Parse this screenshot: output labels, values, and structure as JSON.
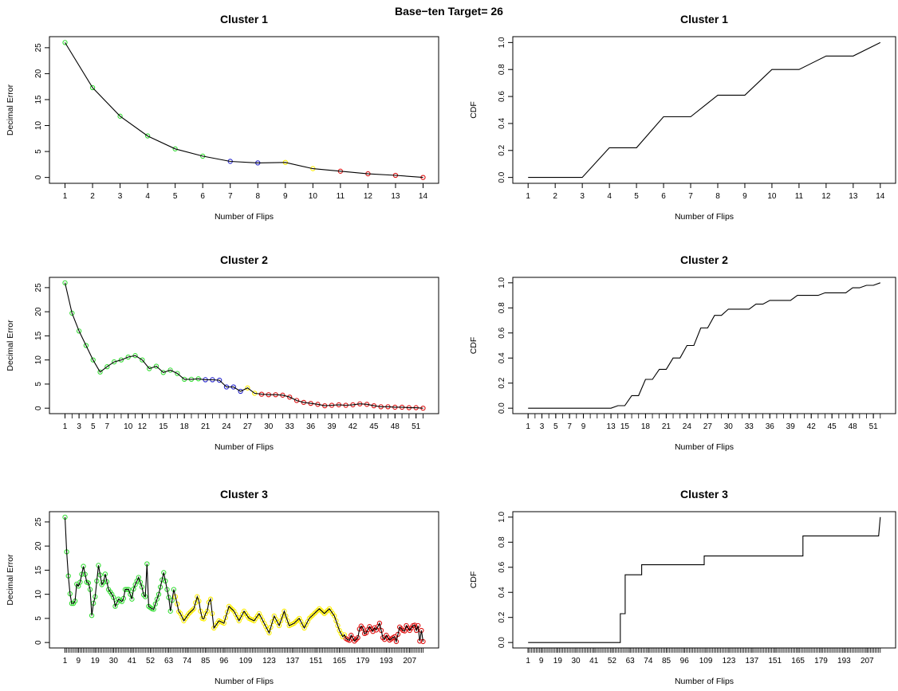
{
  "title": "Base−ten Target= 26",
  "colors": {
    "green": "#33dd33",
    "blue": "#2222cc",
    "yellow": "#ffee00",
    "red": "#dd1111",
    "line": "#000000"
  },
  "chart_data": [
    {
      "type": "line",
      "title": "Cluster 1",
      "xlabel": "Number of Flips",
      "ylabel": "Decimal Error",
      "xlim": [
        1,
        14
      ],
      "ylim": [
        0,
        26
      ],
      "xticks": [
        1,
        2,
        3,
        4,
        5,
        6,
        7,
        8,
        9,
        10,
        11,
        12,
        13,
        14
      ],
      "yticks": [
        0,
        5,
        10,
        15,
        20,
        25
      ],
      "values": [
        26,
        17.3,
        11.8,
        8,
        5.5,
        4.1,
        3.1,
        2.8,
        2.9,
        1.7,
        1.2,
        0.7,
        0.4,
        0
      ],
      "colors": [
        "green",
        "green",
        "green",
        "green",
        "green",
        "green",
        "blue",
        "blue",
        "yellow",
        "yellow",
        "red",
        "red",
        "red",
        "red"
      ],
      "markers": true,
      "marker_every": 1
    },
    {
      "type": "line",
      "title": "Cluster 1",
      "xlabel": "Number of Flips",
      "ylabel": "CDF",
      "xlim": [
        1,
        14
      ],
      "ylim": [
        0,
        1
      ],
      "xticks": [
        1,
        2,
        3,
        4,
        5,
        6,
        7,
        8,
        9,
        10,
        11,
        12,
        13,
        14
      ],
      "yticks": [
        0,
        0.2,
        0.4,
        0.6,
        0.8,
        1.0
      ],
      "values": [
        0,
        0,
        0,
        0.22,
        0.22,
        0.45,
        0.45,
        0.61,
        0.61,
        0.8,
        0.8,
        0.9,
        0.9,
        1.0
      ]
    },
    {
      "type": "line",
      "title": "Cluster 2",
      "xlabel": "Number of Flips",
      "ylabel": "Decimal Error",
      "xlim": [
        1,
        52
      ],
      "ylim": [
        0,
        26
      ],
      "xticks": [
        1,
        3,
        5,
        7,
        10,
        12,
        15,
        18,
        21,
        24,
        27,
        30,
        33,
        36,
        39,
        42,
        45,
        48,
        51
      ],
      "yticks": [
        0,
        5,
        10,
        15,
        20,
        25
      ],
      "values": [
        26,
        19.7,
        16,
        13,
        10,
        7.5,
        8.6,
        9.6,
        10,
        10.6,
        10.9,
        10,
        8.2,
        8.7,
        7.4,
        7.9,
        7.2,
        6,
        6,
        6.1,
        5.9,
        5.9,
        5.8,
        4.4,
        4.4,
        3.5,
        4.2,
        3.1,
        2.9,
        2.8,
        2.8,
        2.7,
        2.3,
        1.6,
        1.2,
        1.0,
        0.8,
        0.5,
        0.6,
        0.7,
        0.6,
        0.7,
        0.9,
        0.8,
        0.5,
        0.3,
        0.3,
        0.2,
        0.2,
        0.1,
        0.1,
        0
      ],
      "colors": [
        "green",
        "green",
        "green",
        "green",
        "green",
        "green",
        "green",
        "green",
        "green",
        "green",
        "green",
        "green",
        "green",
        "green",
        "green",
        "green",
        "green",
        "green",
        "green",
        "green",
        "blue",
        "blue",
        "blue",
        "blue",
        "blue",
        "blue",
        "yellow",
        "yellow",
        "red",
        "red",
        "red",
        "red",
        "red",
        "red",
        "red",
        "red",
        "red",
        "red",
        "red",
        "red",
        "red",
        "red",
        "red",
        "red",
        "red",
        "red",
        "red",
        "red",
        "red",
        "red",
        "red",
        "red"
      ],
      "markers": true,
      "marker_every": 1
    },
    {
      "type": "line",
      "title": "Cluster 2",
      "xlabel": "Number of Flips",
      "ylabel": "CDF",
      "xlim": [
        1,
        52
      ],
      "ylim": [
        0,
        1
      ],
      "xticks": [
        1,
        3,
        5,
        7,
        9,
        13,
        15,
        18,
        21,
        24,
        27,
        30,
        33,
        36,
        39,
        42,
        45,
        48,
        51
      ],
      "yticks": [
        0,
        0.2,
        0.4,
        0.6,
        0.8,
        1.0
      ],
      "values": [
        0,
        0,
        0,
        0,
        0,
        0,
        0,
        0,
        0,
        0,
        0,
        0,
        0,
        0.02,
        0.02,
        0.1,
        0.1,
        0.23,
        0.23,
        0.31,
        0.31,
        0.4,
        0.4,
        0.5,
        0.5,
        0.64,
        0.64,
        0.74,
        0.74,
        0.79,
        0.79,
        0.79,
        0.79,
        0.83,
        0.83,
        0.86,
        0.86,
        0.86,
        0.86,
        0.9,
        0.9,
        0.9,
        0.9,
        0.92,
        0.92,
        0.92,
        0.92,
        0.96,
        0.96,
        0.98,
        0.98,
        1.0
      ]
    },
    {
      "type": "line",
      "title": "Cluster 3",
      "xlabel": "Number of Flips",
      "ylabel": "Decimal Error",
      "xlim": [
        1,
        215
      ],
      "ylim": [
        0,
        26
      ],
      "xticks": [
        1,
        9,
        19,
        30,
        41,
        52,
        63,
        74,
        85,
        96,
        109,
        123,
        137,
        151,
        165,
        179,
        193,
        207
      ],
      "yticks": [
        0,
        5,
        10,
        15,
        20,
        25
      ],
      "anchors": [
        [
          1,
          26
        ],
        [
          2,
          18.8
        ],
        [
          3,
          13.8
        ],
        [
          4,
          10.1
        ],
        [
          5,
          8.1
        ],
        [
          6,
          8.1
        ],
        [
          7,
          8.6
        ],
        [
          8,
          12.1
        ],
        [
          10,
          12.5
        ],
        [
          12,
          15.8
        ],
        [
          14,
          12.5
        ],
        [
          16,
          11
        ],
        [
          17,
          5.6
        ],
        [
          19,
          9.5
        ],
        [
          21,
          16
        ],
        [
          23,
          12
        ],
        [
          25,
          14.2
        ],
        [
          27,
          11
        ],
        [
          29,
          10
        ],
        [
          31,
          7.5
        ],
        [
          33,
          9
        ],
        [
          35,
          8.5
        ],
        [
          37,
          11
        ],
        [
          39,
          11
        ],
        [
          41,
          9
        ],
        [
          43,
          12
        ],
        [
          45,
          13.5
        ],
        [
          47,
          11.5
        ],
        [
          49,
          9.5
        ],
        [
          50,
          16.3
        ],
        [
          51,
          7.5
        ],
        [
          53,
          7
        ],
        [
          55,
          8
        ],
        [
          57,
          10
        ],
        [
          59,
          13
        ],
        [
          60,
          14.5
        ],
        [
          62,
          11
        ],
        [
          64,
          6.5
        ],
        [
          66,
          11
        ],
        [
          68,
          8
        ],
        [
          70,
          6
        ],
        [
          72,
          4.5
        ],
        [
          75,
          6
        ],
        [
          78,
          7
        ],
        [
          80,
          9.5
        ],
        [
          83,
          5
        ],
        [
          86,
          6.5
        ],
        [
          88,
          9
        ],
        [
          90,
          3
        ],
        [
          93,
          4.5
        ],
        [
          96,
          4
        ],
        [
          99,
          7.5
        ],
        [
          102,
          6.5
        ],
        [
          105,
          4.5
        ],
        [
          108,
          6.5
        ],
        [
          111,
          5
        ],
        [
          114,
          4.5
        ],
        [
          117,
          6
        ],
        [
          120,
          4
        ],
        [
          123,
          2
        ],
        [
          126,
          5.5
        ],
        [
          129,
          3.5
        ],
        [
          132,
          6.5
        ],
        [
          135,
          3.5
        ],
        [
          138,
          4
        ],
        [
          141,
          5
        ],
        [
          144,
          3
        ],
        [
          147,
          5
        ],
        [
          150,
          6
        ],
        [
          153,
          7
        ],
        [
          156,
          6
        ],
        [
          159,
          7
        ],
        [
          162,
          5.5
        ],
        [
          165,
          2.5
        ],
        [
          167,
          1.2
        ],
        [
          170,
          0.6
        ],
        [
          172,
          1.5
        ],
        [
          174,
          0.3
        ],
        [
          176,
          1
        ],
        [
          178,
          3.4
        ],
        [
          181,
          2
        ],
        [
          183,
          3.3
        ],
        [
          185,
          2.3
        ],
        [
          187,
          2.6
        ],
        [
          189,
          4
        ],
        [
          191,
          1
        ],
        [
          193,
          1.5
        ],
        [
          195,
          0.5
        ],
        [
          197,
          1
        ],
        [
          199,
          0.2
        ],
        [
          201,
          3.2
        ],
        [
          203,
          2.5
        ],
        [
          205,
          3.5
        ],
        [
          207,
          2.5
        ],
        [
          209,
          3.5
        ],
        [
          211,
          2.5
        ],
        [
          212,
          3.5
        ],
        [
          213,
          0.3
        ],
        [
          214,
          2.5
        ],
        [
          215,
          0.2
        ]
      ],
      "segments": [
        [
          1,
          66,
          "green"
        ],
        [
          67,
          168,
          "yellow"
        ],
        [
          169,
          215,
          "red"
        ]
      ],
      "markers": true,
      "marker_every": 1
    },
    {
      "type": "line",
      "title": "Cluster 3",
      "xlabel": "Number of Flips",
      "ylabel": "CDF",
      "xlim": [
        1,
        215
      ],
      "ylim": [
        0,
        1
      ],
      "xticks": [
        1,
        9,
        19,
        30,
        41,
        52,
        63,
        74,
        85,
        96,
        109,
        123,
        137,
        151,
        165,
        179,
        193,
        207
      ],
      "yticks": [
        0,
        0.2,
        0.4,
        0.6,
        0.8,
        1.0
      ],
      "steps": [
        [
          1,
          0
        ],
        [
          57,
          0
        ],
        [
          57,
          0.23
        ],
        [
          60,
          0.23
        ],
        [
          60,
          0.54
        ],
        [
          70,
          0.54
        ],
        [
          70,
          0.62
        ],
        [
          108,
          0.62
        ],
        [
          108,
          0.69
        ],
        [
          168,
          0.69
        ],
        [
          168,
          0.85
        ],
        [
          214,
          0.85
        ],
        [
          215,
          1.0
        ]
      ]
    }
  ]
}
